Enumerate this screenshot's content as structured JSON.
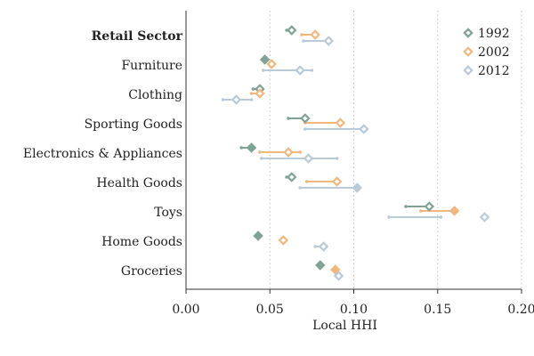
{
  "chart_data": {
    "type": "scatter",
    "title": "",
    "xlabel": "Local HHI",
    "ylabel": "",
    "xlim": [
      0.0,
      0.2
    ],
    "xticks": [
      0.0,
      0.05,
      0.1,
      0.15,
      0.2
    ],
    "xtick_labels": [
      "0.00",
      "0.05",
      "0.10",
      "0.15",
      "0.20"
    ],
    "grid": "vertical dotted",
    "legend_position": "top-right",
    "categories": [
      "Retail Sector",
      "Furniture",
      "Clothing",
      "Sporting Goods",
      "Electronics & Appliances",
      "Health Goods",
      "Toys",
      "Home Goods",
      "Groceries"
    ],
    "bold_categories": [
      "Retail Sector"
    ],
    "series": [
      {
        "name": "1992",
        "color": "#7fa394",
        "values": [
          0.063,
          0.047,
          0.044,
          0.071,
          0.039,
          0.063,
          0.145,
          0.043,
          0.08
        ],
        "filled": [
          false,
          true,
          false,
          false,
          true,
          false,
          false,
          true,
          true
        ],
        "range_lo": [
          0.06,
          null,
          0.04,
          0.061,
          0.033,
          0.06,
          0.131,
          null,
          null
        ],
        "range_hi": [
          null,
          null,
          null,
          null,
          null,
          null,
          null,
          null,
          null
        ]
      },
      {
        "name": "2002",
        "color": "#f2b77d",
        "values": [
          0.077,
          0.051,
          0.044,
          0.092,
          0.061,
          0.09,
          0.16,
          0.058,
          0.089
        ],
        "filled": [
          false,
          false,
          false,
          false,
          false,
          false,
          true,
          false,
          true
        ],
        "range_lo": [
          0.069,
          null,
          0.039,
          0.071,
          0.044,
          0.072,
          0.14,
          null,
          null
        ],
        "range_hi": [
          null,
          null,
          null,
          null,
          0.068,
          null,
          null,
          null,
          null
        ]
      },
      {
        "name": "2012",
        "color": "#b9cad8",
        "values": [
          0.085,
          0.068,
          0.03,
          0.106,
          0.073,
          0.102,
          0.178,
          0.082,
          0.091
        ],
        "filled": [
          false,
          false,
          false,
          false,
          false,
          true,
          false,
          false,
          false
        ],
        "range_lo": [
          0.07,
          0.046,
          0.022,
          0.071,
          0.045,
          0.068,
          0.121,
          0.077,
          null
        ],
        "range_hi": [
          null,
          0.075,
          0.039,
          null,
          0.09,
          null,
          0.152,
          null,
          null
        ]
      }
    ]
  }
}
